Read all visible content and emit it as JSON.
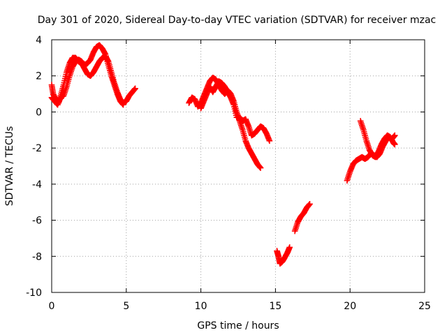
{
  "chart_data": {
    "type": "scatter",
    "title": "Day 301 of 2020, Sidereal Day-to-day VTEC variation (SDTVAR) for receiver mzac",
    "xlabel": "GPS time / hours",
    "ylabel": "SDTVAR / TECUs",
    "xlim": [
      0,
      25
    ],
    "ylim": [
      -10,
      4
    ],
    "xticks": [
      0,
      5,
      10,
      15,
      20,
      25
    ],
    "yticks": [
      -10,
      -8,
      -6,
      -4,
      -2,
      0,
      2,
      4
    ],
    "xtick_labels": [
      "0",
      "5",
      "10",
      "15",
      "20",
      "25"
    ],
    "ytick_labels": [
      "-10",
      "-8",
      "-6",
      "-4",
      "-2",
      "0",
      "2",
      "4"
    ],
    "grid": true,
    "marker": "+",
    "color": "#ff0000",
    "series": [
      {
        "name": "SDTVAR",
        "segments": [
          [
            [
              0.0,
              1.5
            ],
            [
              0.1,
              1.0
            ],
            [
              0.25,
              0.7
            ],
            [
              0.45,
              0.5
            ],
            [
              0.6,
              0.8
            ],
            [
              0.8,
              0.9
            ],
            [
              1.0,
              1.4
            ],
            [
              1.2,
              2.0
            ],
            [
              1.4,
              2.5
            ],
            [
              1.6,
              2.8
            ],
            [
              1.8,
              2.9
            ],
            [
              2.0,
              2.8
            ],
            [
              2.2,
              2.6
            ],
            [
              2.4,
              2.7
            ],
            [
              2.6,
              2.9
            ],
            [
              2.8,
              3.3
            ],
            [
              3.0,
              3.6
            ],
            [
              3.2,
              3.7
            ],
            [
              3.4,
              3.5
            ],
            [
              3.6,
              3.2
            ],
            [
              3.8,
              2.6
            ],
            [
              4.0,
              2.0
            ],
            [
              4.2,
              1.5
            ],
            [
              4.4,
              1.0
            ],
            [
              4.6,
              0.6
            ],
            [
              4.8,
              0.4
            ]
          ],
          [
            [
              0.0,
              0.8
            ],
            [
              0.2,
              0.6
            ],
            [
              0.4,
              0.4
            ],
            [
              0.6,
              0.9
            ],
            [
              0.8,
              1.5
            ],
            [
              1.0,
              2.2
            ],
            [
              1.2,
              2.7
            ],
            [
              1.4,
              3.0
            ],
            [
              1.6,
              3.0
            ],
            [
              1.8,
              2.8
            ],
            [
              2.0,
              2.7
            ],
            [
              2.2,
              2.4
            ],
            [
              2.4,
              2.1
            ],
            [
              2.6,
              2.0
            ],
            [
              2.8,
              2.2
            ],
            [
              3.0,
              2.5
            ],
            [
              3.2,
              2.8
            ],
            [
              3.4,
              3.0
            ],
            [
              3.6,
              3.1
            ],
            [
              3.8,
              2.8
            ],
            [
              4.0,
              2.2
            ],
            [
              4.2,
              1.6
            ],
            [
              4.4,
              1.1
            ],
            [
              4.6,
              0.7
            ],
            [
              4.8,
              0.5
            ],
            [
              5.0,
              0.6
            ],
            [
              5.2,
              0.9
            ],
            [
              5.4,
              1.1
            ],
            [
              5.6,
              1.3
            ]
          ],
          [
            [
              9.2,
              0.5
            ],
            [
              9.4,
              0.8
            ],
            [
              9.6,
              0.7
            ],
            [
              9.8,
              0.3
            ],
            [
              10.0,
              0.5
            ],
            [
              10.2,
              0.9
            ],
            [
              10.4,
              1.3
            ],
            [
              10.6,
              1.7
            ],
            [
              10.8,
              1.9
            ],
            [
              11.0,
              1.8
            ],
            [
              11.2,
              1.5
            ],
            [
              11.4,
              1.2
            ],
            [
              11.6,
              1.0
            ],
            [
              11.8,
              1.2
            ],
            [
              12.0,
              1.0
            ],
            [
              12.2,
              0.6
            ],
            [
              12.4,
              0.0
            ],
            [
              12.6,
              -0.5
            ],
            [
              12.8,
              -1.0
            ],
            [
              13.0,
              -1.6
            ],
            [
              13.2,
              -2.0
            ],
            [
              13.4,
              -2.3
            ],
            [
              13.6,
              -2.6
            ],
            [
              13.8,
              -2.9
            ],
            [
              14.0,
              -3.1
            ]
          ],
          [
            [
              10.0,
              0.2
            ],
            [
              10.2,
              0.6
            ],
            [
              10.4,
              1.0
            ],
            [
              10.6,
              1.4
            ],
            [
              10.8,
              1.1
            ],
            [
              11.0,
              1.4
            ],
            [
              11.2,
              1.7
            ],
            [
              11.4,
              1.6
            ],
            [
              11.6,
              1.4
            ],
            [
              11.8,
              1.1
            ],
            [
              12.0,
              0.8
            ],
            [
              12.2,
              0.4
            ],
            [
              12.4,
              -0.3
            ],
            [
              12.6,
              -0.3
            ],
            [
              12.8,
              -0.5
            ],
            [
              13.0,
              -0.4
            ],
            [
              13.2,
              -0.8
            ],
            [
              13.4,
              -1.3
            ],
            [
              13.6,
              -1.2
            ],
            [
              13.8,
              -1.0
            ],
            [
              14.0,
              -0.8
            ],
            [
              14.2,
              -0.9
            ],
            [
              14.4,
              -1.2
            ],
            [
              14.6,
              -1.6
            ]
          ],
          [
            [
              15.1,
              -7.7
            ],
            [
              15.2,
              -8.0
            ],
            [
              15.3,
              -8.4
            ],
            [
              15.45,
              -8.3
            ],
            [
              15.6,
              -8.1
            ],
            [
              15.8,
              -7.8
            ],
            [
              15.95,
              -7.5
            ]
          ],
          [
            [
              16.3,
              -6.6
            ],
            [
              16.5,
              -6.1
            ],
            [
              16.7,
              -5.8
            ],
            [
              16.9,
              -5.6
            ],
            [
              17.1,
              -5.3
            ],
            [
              17.3,
              -5.1
            ]
          ],
          [
            [
              19.8,
              -3.8
            ],
            [
              20.0,
              -3.3
            ],
            [
              20.2,
              -2.9
            ],
            [
              20.4,
              -2.7
            ],
            [
              20.6,
              -2.6
            ],
            [
              20.8,
              -2.5
            ],
            [
              21.0,
              -2.6
            ],
            [
              21.2,
              -2.5
            ],
            [
              21.4,
              -2.3
            ],
            [
              21.6,
              -2.4
            ],
            [
              21.8,
              -2.5
            ],
            [
              22.0,
              -2.3
            ],
            [
              22.2,
              -1.9
            ],
            [
              22.4,
              -1.6
            ],
            [
              22.6,
              -1.4
            ],
            [
              22.8,
              -1.5
            ],
            [
              23.0,
              -1.3
            ]
          ],
          [
            [
              20.7,
              -0.5
            ],
            [
              20.9,
              -1.0
            ],
            [
              21.1,
              -1.6
            ],
            [
              21.3,
              -2.1
            ],
            [
              21.5,
              -2.4
            ],
            [
              21.7,
              -2.5
            ],
            [
              21.9,
              -2.2
            ],
            [
              22.1,
              -1.8
            ],
            [
              22.3,
              -1.5
            ],
            [
              22.5,
              -1.3
            ],
            [
              22.7,
              -1.4
            ],
            [
              22.9,
              -1.7
            ],
            [
              23.0,
              -1.8
            ]
          ]
        ]
      }
    ]
  }
}
